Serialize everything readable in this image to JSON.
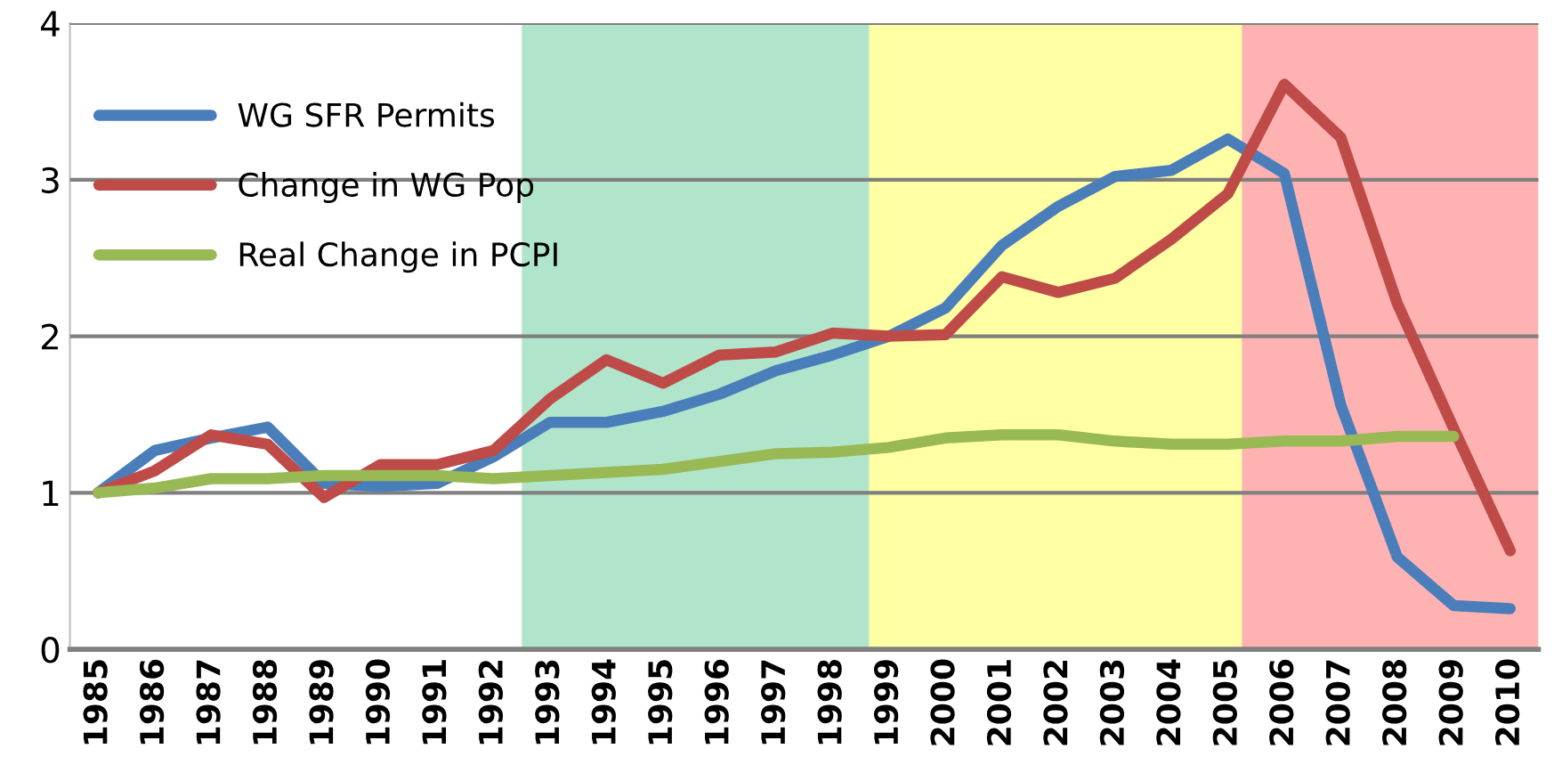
{
  "chart_data": {
    "type": "line",
    "x": [
      1985,
      1986,
      1987,
      1988,
      1989,
      1990,
      1991,
      1992,
      1993,
      1994,
      1995,
      1996,
      1997,
      1998,
      1999,
      2000,
      2001,
      2002,
      2003,
      2004,
      2005,
      2006,
      2007,
      2008,
      2009,
      2010
    ],
    "series": [
      {
        "name": "WG SFR Permits",
        "color": "#4a7ebb",
        "values": [
          1.0,
          1.27,
          1.35,
          1.42,
          1.06,
          1.04,
          1.06,
          1.23,
          1.45,
          1.45,
          1.52,
          1.63,
          1.78,
          1.88,
          2.0,
          2.18,
          2.58,
          2.83,
          3.02,
          3.06,
          3.26,
          3.04,
          1.56,
          0.59,
          0.28,
          0.26
        ]
      },
      {
        "name": "Change in WG Pop",
        "color": "#be4b48",
        "values": [
          1.0,
          1.14,
          1.37,
          1.31,
          0.97,
          1.18,
          1.18,
          1.27,
          1.6,
          1.85,
          1.7,
          1.88,
          1.9,
          2.02,
          2.0,
          2.01,
          2.38,
          2.28,
          2.37,
          2.62,
          2.91,
          3.61,
          3.27,
          2.21,
          1.41,
          0.63
        ]
      },
      {
        "name": "Real Change in PCPI",
        "color": "#98b954",
        "values": [
          1.0,
          1.03,
          1.09,
          1.09,
          1.11,
          1.11,
          1.11,
          1.09,
          1.11,
          1.13,
          1.15,
          1.2,
          1.25,
          1.26,
          1.29,
          1.35,
          1.37,
          1.37,
          1.33,
          1.31,
          1.31,
          1.33,
          1.33,
          1.36,
          1.36,
          null
        ]
      }
    ],
    "xlim": [
      1984.5,
      2010.5
    ],
    "xticks": [
      1985,
      1986,
      1987,
      1988,
      1989,
      1990,
      1991,
      1992,
      1993,
      1994,
      1995,
      1996,
      1997,
      1998,
      1999,
      2000,
      2001,
      2002,
      2003,
      2004,
      2005,
      2006,
      2007,
      2008,
      2009,
      2010
    ],
    "ylim": [
      0,
      4
    ],
    "yticks": [
      0,
      1,
      2,
      3,
      4
    ],
    "bands": [
      {
        "axis": "x",
        "from": 1992.5,
        "to": 1998.65,
        "color": "#7dd3a8"
      },
      {
        "axis": "x",
        "from": 1998.65,
        "to": 2005.25,
        "color": "#ffff66"
      },
      {
        "axis": "x",
        "from": 2005.25,
        "to": 2010.5,
        "color": "#ff7f7f"
      }
    ],
    "grid": "y",
    "legend": "top left",
    "marker": "none",
    "line_style": "solid"
  }
}
